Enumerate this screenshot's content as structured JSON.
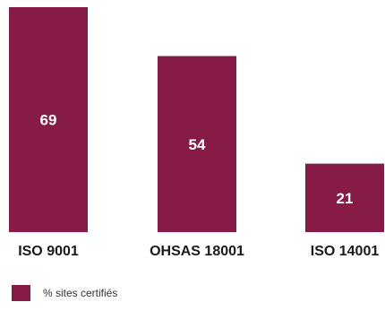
{
  "chart_data": {
    "type": "bar",
    "categories": [
      "ISO 9001",
      "OHSAS 18001",
      "ISO 14001"
    ],
    "series": [
      {
        "name": "% sites certifiés",
        "values": [
          69,
          54,
          21
        ],
        "color": "#861b48"
      }
    ],
    "title": "",
    "xlabel": "",
    "ylabel": "",
    "ylim": [
      0,
      69
    ],
    "grid": false,
    "legend_position": "bottom-left"
  },
  "legend": {
    "label": "% sites certifiés",
    "color": "#861b48"
  }
}
